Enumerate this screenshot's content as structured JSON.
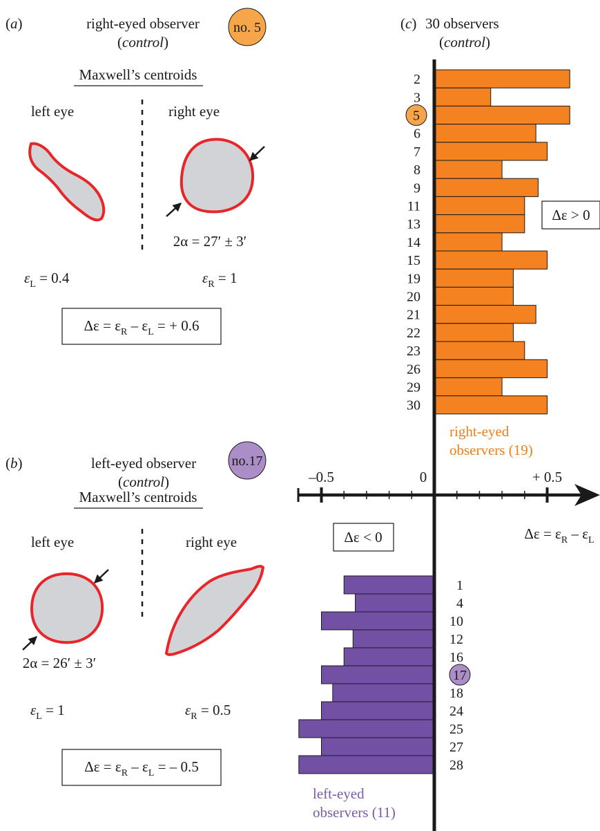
{
  "colors": {
    "right_eyed": "#f58220",
    "left_eyed": "#7251a4",
    "badge_orange": "#f7a54a",
    "badge_purple": "#ab8ec7",
    "outline_red": "#e8262a",
    "eye_fill": "#d1d3d6"
  },
  "panel_a": {
    "letter": "a",
    "title": "right-eyed observer",
    "subtitle": "control",
    "badge": "no. 5",
    "heading": "Maxwell’s centroids",
    "left_label": "left eye",
    "right_label": "right eye",
    "alpha": "2α = 27′ ± 3′",
    "eps_left": {
      "symbol": "ε",
      "sub": "L",
      "value": " = 0.4"
    },
    "eps_right": {
      "symbol": "ε",
      "sub": "R",
      "value": " = 1"
    },
    "delta": {
      "lead": "Δε = ε",
      "sub1": "R",
      "mid": " – ε",
      "sub2": "L",
      "tail": " = + 0.6"
    }
  },
  "panel_b": {
    "letter": "b",
    "title": "left-eyed observer",
    "subtitle": "control",
    "badge": "no.17",
    "heading": "Maxwell’s centroids",
    "left_label": "left eye",
    "right_label": "right eye",
    "alpha": "2α = 26′ ± 3′",
    "eps_left": {
      "symbol": "ε",
      "sub": "L",
      "value": " = 1"
    },
    "eps_right": {
      "symbol": "ε",
      "sub": "R",
      "value": " = 0.5"
    },
    "delta": {
      "lead": "Δε = ε",
      "sub1": "R",
      "mid": " – ε",
      "sub2": "L",
      "tail": " = – 0.5"
    }
  },
  "panel_c": {
    "letter": "c",
    "title": "30 observers",
    "subtitle": "control",
    "pos_box": "Δε > 0",
    "neg_box": "Δε < 0",
    "axis_label": {
      "lead": "Δε = ε",
      "sub1": "R",
      "mid": " – ε",
      "sub2": "L"
    },
    "right_group_label": [
      "right-eyed",
      "observers (19)"
    ],
    "left_group_label": [
      "left-eyed",
      "observers (11)"
    ]
  },
  "chart_data": {
    "type": "bar",
    "orientation": "horizontal",
    "xlabel": "Δε = εR – εL",
    "xlim": [
      -0.6,
      0.6
    ],
    "xticks": [
      -0.5,
      0,
      0.5
    ],
    "xtick_labels": [
      "–0.5",
      "0",
      "+ 0.5"
    ],
    "highlighted": [
      "5",
      "17"
    ],
    "series": [
      {
        "name": "right-eyed observers (19)",
        "categories": [
          "2",
          "3",
          "5",
          "6",
          "7",
          "8",
          "9",
          "11",
          "13",
          "14",
          "15",
          "19",
          "20",
          "21",
          "22",
          "23",
          "26",
          "29",
          "30"
        ],
        "values": [
          0.6,
          0.25,
          0.6,
          0.45,
          0.5,
          0.3,
          0.46,
          0.4,
          0.4,
          0.3,
          0.5,
          0.35,
          0.35,
          0.45,
          0.35,
          0.4,
          0.5,
          0.3,
          0.5
        ]
      },
      {
        "name": "left-eyed observers (11)",
        "categories": [
          "1",
          "4",
          "10",
          "12",
          "16",
          "17",
          "18",
          "24",
          "25",
          "27",
          "28"
        ],
        "values": [
          -0.4,
          -0.35,
          -0.5,
          -0.36,
          -0.4,
          -0.5,
          -0.45,
          -0.5,
          -0.6,
          -0.5,
          -0.6
        ]
      }
    ]
  }
}
